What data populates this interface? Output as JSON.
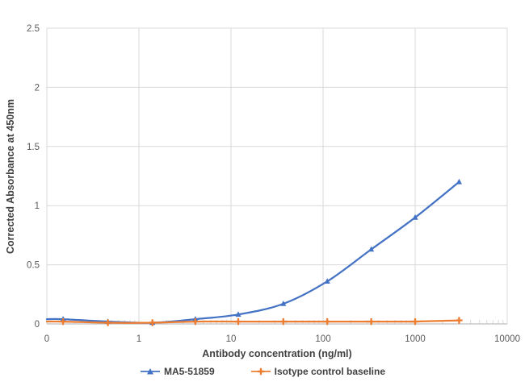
{
  "chart_data": {
    "type": "line",
    "title": "",
    "xlabel": "Antibody concentration (ng/ml)",
    "ylabel": "Corrected Absorbance at 450nm",
    "x_scale": "log",
    "xlim": [
      0.1,
      10000
    ],
    "ylim": [
      0,
      2.5
    ],
    "grid": true,
    "legend_position": "bottom",
    "x_ticks": [
      {
        "value": 0.1,
        "label": "0"
      },
      {
        "value": 1,
        "label": "1"
      },
      {
        "value": 10,
        "label": "10"
      },
      {
        "value": 100,
        "label": "100"
      },
      {
        "value": 1000,
        "label": "1000"
      },
      {
        "value": 10000,
        "label": "10000"
      }
    ],
    "y_ticks": [
      {
        "value": 0,
        "label": "0"
      },
      {
        "value": 0.5,
        "label": "0.5"
      },
      {
        "value": 1,
        "label": "1"
      },
      {
        "value": 1.5,
        "label": "1.5"
      },
      {
        "value": 2,
        "label": "2"
      },
      {
        "value": 2.5,
        "label": "2.5"
      }
    ],
    "x": [
      0.15,
      0.46,
      1.4,
      4.1,
      12,
      37,
      111,
      333,
      1000,
      3000
    ],
    "series": [
      {
        "name": "MA5-51859",
        "color": "#4472C4",
        "marker": "triangle",
        "values": [
          0.04,
          0.02,
          0.01,
          0.04,
          0.08,
          0.17,
          0.36,
          0.63,
          0.9,
          1.2
        ]
      },
      {
        "name": "Isotype control baseline",
        "color": "#ED7D31",
        "marker": "plus",
        "values": [
          0.02,
          0.01,
          0.01,
          0.02,
          0.02,
          0.02,
          0.02,
          0.02,
          0.02,
          0.03
        ]
      }
    ],
    "colors": {
      "gridline": "#D9D9D9",
      "axis_line": "#BFBFBF",
      "tick_label": "#595959",
      "title": "#404040"
    }
  }
}
